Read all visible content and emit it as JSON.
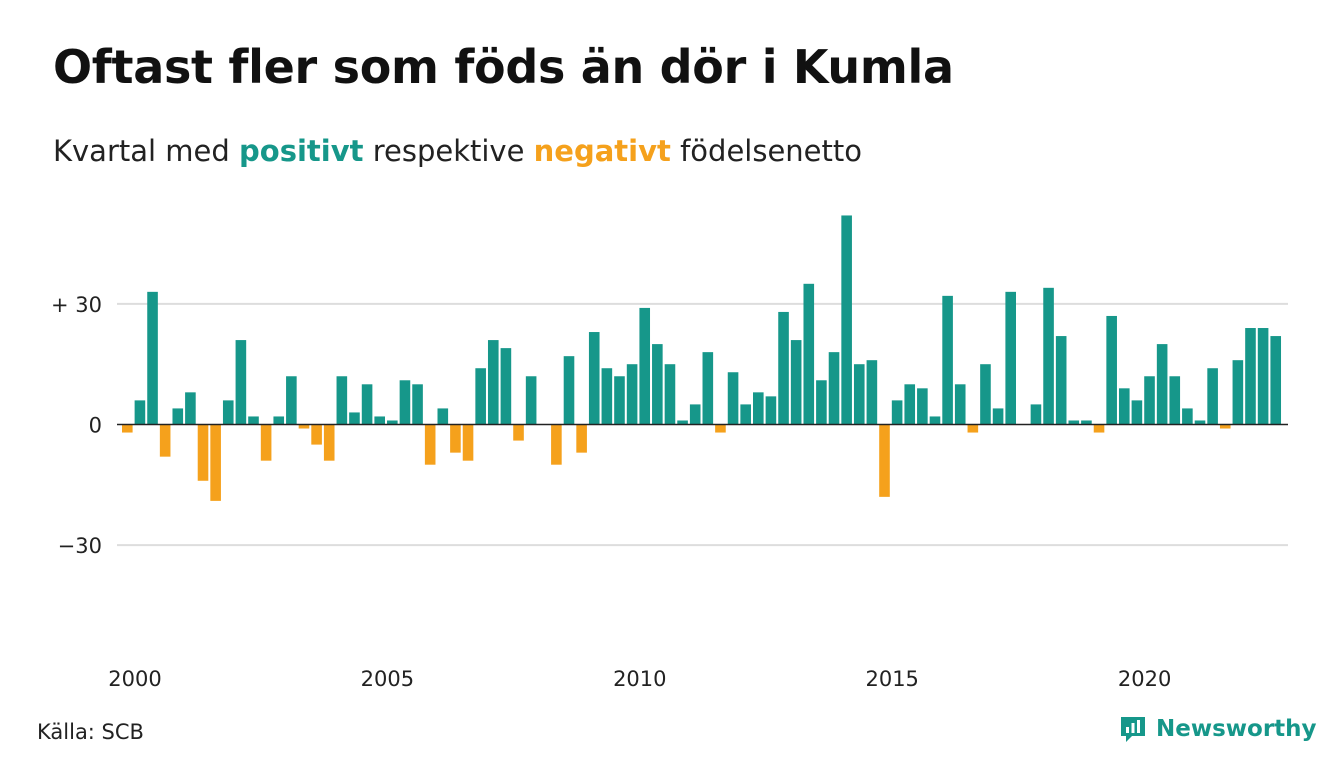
{
  "title": "Oftast fler som föds än dör i Kumla",
  "subtitle": {
    "prefix": "Kvartal med",
    "positive_word": "positivt",
    "middle": "respektive",
    "negative_word": "negativt",
    "suffix": "födelsenetto"
  },
  "colors": {
    "positive": "#16978a",
    "negative": "#f5a11c",
    "grid": "#dddddd",
    "baseline": "#222222"
  },
  "source": "Källa: SCB",
  "brand": {
    "name": "Newsworthy",
    "icon": "newsworthy-logo-icon"
  },
  "chart_data": {
    "type": "bar",
    "title": "Oftast fler som föds än dör i Kumla",
    "subtitle": "Kvartal med positivt respektive negativt födelsenetto",
    "xlabel": "",
    "ylabel": "",
    "start_year": 2000,
    "periods_per_year": 4,
    "x_ticks": [
      2000,
      2005,
      2010,
      2015,
      2020
    ],
    "y_ticks": [
      {
        "value": 30,
        "label": "+ 30"
      },
      {
        "value": 0,
        "label": "0"
      },
      {
        "value": -30,
        "label": "−30"
      }
    ],
    "ylim": [
      -55,
      55
    ],
    "grid": true,
    "legend": "none",
    "values": [
      -2,
      6,
      33,
      -8,
      4,
      8,
      -14,
      -19,
      6,
      21,
      2,
      -9,
      2,
      12,
      -1,
      -5,
      -9,
      12,
      3,
      10,
      2,
      1,
      11,
      10,
      -10,
      4,
      -7,
      -9,
      14,
      21,
      19,
      -4,
      12,
      0,
      -10,
      17,
      -7,
      23,
      14,
      12,
      15,
      29,
      20,
      15,
      1,
      5,
      18,
      -2,
      13,
      5,
      8,
      7,
      28,
      21,
      35,
      11,
      18,
      52,
      15,
      16,
      -18,
      6,
      10,
      9,
      2,
      32,
      10,
      -2,
      15,
      4,
      33,
      0,
      5,
      34,
      22,
      1,
      1,
      -2,
      27,
      9,
      6,
      12,
      20,
      12,
      4,
      1,
      14,
      -1,
      16,
      24,
      24,
      22
    ]
  }
}
